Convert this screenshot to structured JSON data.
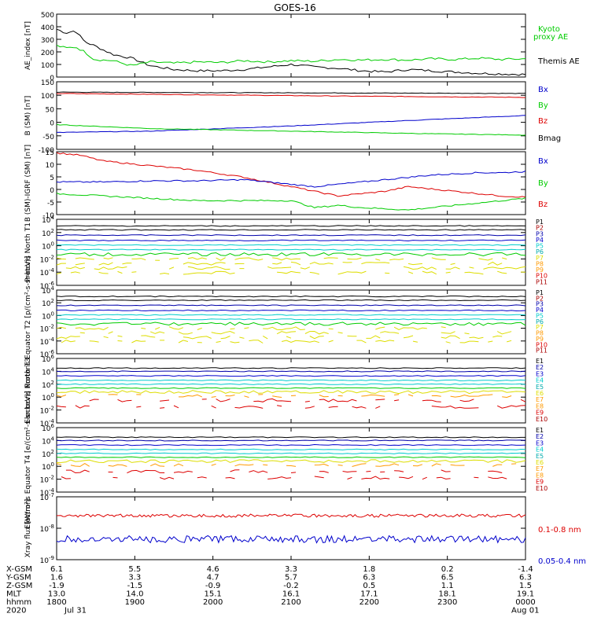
{
  "title": "GOES-16",
  "colors": {
    "black": "#000000",
    "red": "#dd0000",
    "green": "#00cc00",
    "blue": "#0000cc",
    "cyan": "#00cccc",
    "teal": "#00aaaa",
    "yellow": "#dddd00",
    "orange": "#ff9900",
    "navy": "#0000aa",
    "lightgreen": "#33cc33",
    "olive": "#aacc00",
    "darkred": "#aa0000"
  },
  "chart_data": [
    {
      "type": "line",
      "ylabel": "AE_index [nT]",
      "yticks": [
        "500",
        "400",
        "300",
        "200",
        "100",
        "0"
      ],
      "ylim": [
        0,
        500
      ],
      "legend": [
        "Kyoto proxy AE",
        "Themis AE"
      ],
      "series": [
        {
          "name": "Themis AE",
          "color": "black",
          "x": [
            0,
            0.02,
            0.04,
            0.06,
            0.08,
            0.12,
            0.16,
            0.2,
            0.25,
            0.3,
            0.35,
            0.4,
            0.45,
            0.5,
            0.55,
            0.6,
            0.65,
            0.7,
            0.75,
            0.8,
            0.85,
            0.9,
            0.95,
            1.0
          ],
          "y": [
            380,
            350,
            370,
            280,
            250,
            180,
            150,
            90,
            60,
            50,
            50,
            60,
            80,
            100,
            80,
            70,
            50,
            40,
            60,
            50,
            40,
            30,
            25,
            20
          ]
        },
        {
          "name": "Kyoto proxy AE",
          "color": "green",
          "x": [
            0,
            0.02,
            0.04,
            0.06,
            0.08,
            0.12,
            0.16,
            0.2,
            0.25,
            0.3,
            0.35,
            0.4,
            0.45,
            0.5,
            0.55,
            0.6,
            0.65,
            0.7,
            0.75,
            0.8,
            0.85,
            0.9,
            0.95,
            1.0
          ],
          "y": [
            250,
            230,
            240,
            200,
            140,
            130,
            90,
            120,
            110,
            120,
            115,
            130,
            120,
            130,
            125,
            140,
            135,
            140,
            135,
            145,
            140,
            150,
            140,
            145
          ]
        }
      ]
    },
    {
      "type": "line",
      "ylabel": "B (SM) [nT]",
      "yticks": [
        "150",
        "100",
        "50",
        "0",
        "-50",
        "-100"
      ],
      "ylim": [
        -110,
        150
      ],
      "legend": [
        "Bx",
        "By",
        "Bz",
        "Bmag"
      ],
      "series": [
        {
          "name": "Bmag",
          "color": "black",
          "x": [
            0,
            1
          ],
          "y": [
            110,
            105
          ]
        },
        {
          "name": "Bz",
          "color": "red",
          "x": [
            0,
            0.3,
            0.6,
            1
          ],
          "y": [
            105,
            100,
            95,
            90
          ]
        },
        {
          "name": "Bx",
          "color": "blue",
          "x": [
            0,
            0.2,
            0.5,
            0.8,
            1
          ],
          "y": [
            -45,
            -40,
            -20,
            5,
            20
          ]
        },
        {
          "name": "By",
          "color": "green",
          "x": [
            0,
            0.2,
            0.5,
            0.8,
            1
          ],
          "y": [
            -15,
            -30,
            -40,
            -50,
            -55
          ]
        }
      ]
    },
    {
      "type": "line",
      "ylabel": "B (SM)-IGRF (SM) [nT]",
      "yticks": [
        "15",
        "10",
        "5",
        "0",
        "-5",
        "-10"
      ],
      "ylim": [
        -11,
        16
      ],
      "legend": [
        "Bx",
        "By",
        "Bz"
      ],
      "series": [
        {
          "name": "Bz",
          "color": "red",
          "x": [
            0,
            0.05,
            0.1,
            0.2,
            0.3,
            0.4,
            0.45,
            0.5,
            0.55,
            0.6,
            0.65,
            0.7,
            0.75,
            0.8,
            0.85,
            0.9,
            0.95,
            1
          ],
          "y": [
            15.5,
            14.5,
            12,
            10,
            8,
            5,
            3,
            1,
            -1,
            -3,
            -2,
            -1,
            1,
            0,
            -1,
            -2,
            -3,
            -3.5
          ]
        },
        {
          "name": "Bx",
          "color": "blue",
          "x": [
            0,
            0.1,
            0.2,
            0.3,
            0.4,
            0.5,
            0.55,
            0.6,
            0.65,
            0.7,
            0.75,
            0.8,
            0.85,
            0.9,
            0.95,
            1
          ],
          "y": [
            3,
            3,
            3.5,
            3.5,
            4,
            2,
            1,
            2,
            3,
            4,
            5,
            6,
            6.5,
            7,
            7,
            7.5
          ]
        },
        {
          "name": "By",
          "color": "green",
          "x": [
            0,
            0.1,
            0.2,
            0.3,
            0.4,
            0.5,
            0.55,
            0.6,
            0.65,
            0.7,
            0.75,
            0.8,
            0.85,
            0.9,
            0.95,
            1
          ],
          "y": [
            -2,
            -3,
            -4,
            -5,
            -5,
            -5,
            -8,
            -7,
            -8,
            -8.5,
            -9,
            -8,
            -7,
            -6,
            -5,
            -4
          ]
        }
      ]
    },
    {
      "type": "line",
      "ylabel": "Protons North T1",
      "log": true,
      "ylim": [
        -6,
        4
      ],
      "yticks": [
        "10^4",
        "10^2",
        "10^0",
        "10^-2",
        "10^-4",
        "10^-6"
      ],
      "legend": [
        "P1",
        "P2",
        "P3",
        "P4",
        "P5",
        "P6",
        "P7",
        "P8",
        "P9",
        "P10",
        "P11"
      ],
      "levels": [
        3,
        2.4,
        1.6,
        0.8,
        0.1,
        -0.6,
        -1.3,
        -2.0,
        -2.7,
        -3.4,
        -4.1
      ]
    },
    {
      "type": "line",
      "ylabel": "Protons Equator T2 [p/(cm²-s-sr-keV)]",
      "log": true,
      "ylim": [
        -6,
        4
      ],
      "yticks": [
        "10^4",
        "10^2",
        "10^0",
        "10^-2",
        "10^-4",
        "10^-6"
      ],
      "legend": [
        "P1",
        "P2",
        "P3",
        "P4",
        "P5",
        "P6",
        "P7",
        "P8",
        "P9",
        "P10",
        "P11"
      ],
      "levels": [
        3,
        2.4,
        1.6,
        0.8,
        0.1,
        -0.6,
        -1.3,
        -2.0,
        -2.7,
        -3.4,
        -4.1
      ]
    },
    {
      "type": "line",
      "ylabel": "Electrons North T3",
      "log": true,
      "ylim": [
        -4,
        6
      ],
      "yticks": [
        "10^6",
        "10^4",
        "10^2",
        "10^0",
        "10^-2",
        "10^-4"
      ],
      "legend": [
        "E1",
        "E2",
        "E3",
        "E4",
        "E5",
        "E6",
        "E7",
        "E8",
        "E9",
        "E10"
      ],
      "levels": [
        4.5,
        4,
        3.3,
        2.6,
        2,
        1.4,
        0.8,
        0.2,
        -0.5,
        -1.5
      ]
    },
    {
      "type": "line",
      "ylabel": "Electrons Equator T4 [e/(cm²-s-sr-keV)]",
      "log": true,
      "ylim": [
        -4,
        6
      ],
      "yticks": [
        "10^6",
        "10^4",
        "10^2",
        "10^0",
        "10^-2",
        "10^-4"
      ],
      "legend": [
        "E1",
        "E2",
        "E3",
        "E4",
        "E5",
        "E6",
        "E7",
        "E8",
        "E9",
        "E10"
      ],
      "levels": [
        4.5,
        4,
        3.3,
        2.6,
        2,
        1.4,
        0.8,
        0.2,
        -0.8,
        -1.8
      ]
    },
    {
      "type": "line",
      "ylabel": "Xray flux [W/m²]",
      "log": true,
      "ylim": [
        -9,
        -7
      ],
      "yticks": [
        "10^-7",
        "10^-8",
        "10^-9"
      ],
      "legend": [
        "0.1-0.8 nm",
        "0.05-0.4 nm"
      ],
      "series": [
        {
          "name": "0.1-0.8 nm",
          "color": "red",
          "level": -7.6
        },
        {
          "name": "0.05-0.4 nm",
          "color": "blue",
          "level": -8.35
        }
      ]
    }
  ],
  "footer": {
    "row_labels": [
      "X-GSM",
      "Y-GSM",
      "Z-GSM",
      "MLT",
      "hhmm",
      "2020"
    ],
    "columns": [
      [
        "6.1",
        "1.6",
        "-1.9",
        "13.0",
        "1800",
        "Jul 31"
      ],
      [
        "5.5",
        "3.3",
        "-1.5",
        "14.0",
        "1900",
        ""
      ],
      [
        "4.6",
        "4.7",
        "-0.9",
        "15.1",
        "2000",
        ""
      ],
      [
        "3.3",
        "5.7",
        "-0.2",
        "16.1",
        "2100",
        ""
      ],
      [
        "1.8",
        "6.3",
        "0.5",
        "17.1",
        "2200",
        ""
      ],
      [
        "0.2",
        "6.5",
        "1.1",
        "18.1",
        "2300",
        ""
      ],
      [
        "-1.4",
        "6.3",
        "1.5",
        "19.1",
        "0000",
        "Aug 01"
      ]
    ]
  }
}
